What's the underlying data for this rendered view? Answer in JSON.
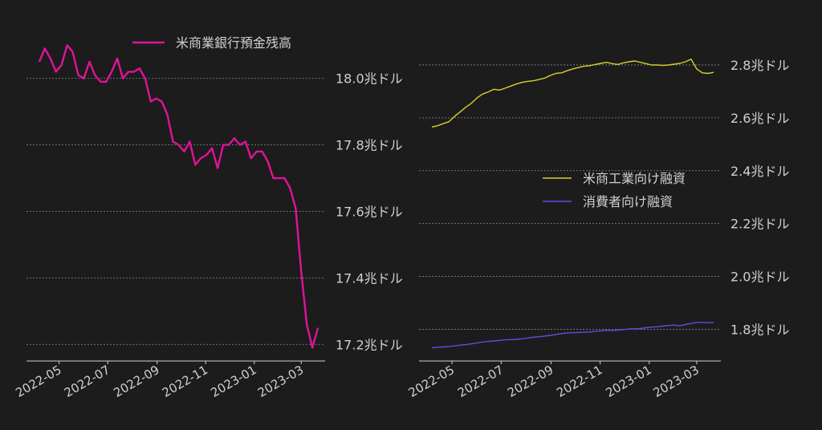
{
  "colors": {
    "background": "#1c1c1c",
    "text": "#d0d0d0",
    "grid": "#8a8a8a",
    "deposits": "#e0139a",
    "ci_loans": "#d9cf2a",
    "consumer_loans": "#5b4fe0"
  },
  "chart_data": [
    {
      "type": "line",
      "title": "",
      "xlabel": "",
      "ylabel": "",
      "ylim": [
        17.15,
        18.12
      ],
      "yticks": [
        18.0,
        17.8,
        17.6,
        17.4,
        17.2
      ],
      "ytick_labels": [
        "18.0兆ドル",
        "17.8兆ドル",
        "17.6兆ドル",
        "17.4兆ドル",
        "17.2兆ドル"
      ],
      "xtick_labels": [
        "2022-05",
        "2022-07",
        "2022-09",
        "2022-11",
        "2023-01",
        "2023-03"
      ],
      "x_range": [
        "2022-03-21",
        "2023-03-31"
      ],
      "grid": "horizontal",
      "legend_placement": "top-center",
      "series": [
        {
          "name": "米商業銀行預金残高",
          "color": "#e0139a",
          "x": [
            "2022-04-06",
            "2022-04-13",
            "2022-04-20",
            "2022-04-27",
            "2022-05-04",
            "2022-05-11",
            "2022-05-18",
            "2022-05-25",
            "2022-06-01",
            "2022-06-08",
            "2022-06-15",
            "2022-06-22",
            "2022-06-29",
            "2022-07-06",
            "2022-07-13",
            "2022-07-20",
            "2022-07-27",
            "2022-08-03",
            "2022-08-10",
            "2022-08-17",
            "2022-08-24",
            "2022-08-31",
            "2022-09-07",
            "2022-09-14",
            "2022-09-21",
            "2022-09-28",
            "2022-10-05",
            "2022-10-12",
            "2022-10-19",
            "2022-10-26",
            "2022-11-02",
            "2022-11-09",
            "2022-11-16",
            "2022-11-23",
            "2022-11-30",
            "2022-12-07",
            "2022-12-14",
            "2022-12-21",
            "2022-12-28",
            "2023-01-04",
            "2023-01-11",
            "2023-01-18",
            "2023-01-25",
            "2023-02-01",
            "2023-02-08",
            "2023-02-15",
            "2023-02-22",
            "2023-03-01",
            "2023-03-08",
            "2023-03-15",
            "2023-03-22"
          ],
          "values": [
            18.05,
            18.09,
            18.06,
            18.02,
            18.04,
            18.1,
            18.08,
            18.01,
            18.0,
            18.05,
            18.01,
            17.99,
            17.99,
            18.02,
            18.06,
            18.0,
            18.02,
            18.02,
            18.03,
            18.0,
            17.93,
            17.94,
            17.93,
            17.89,
            17.81,
            17.8,
            17.78,
            17.81,
            17.74,
            17.76,
            17.77,
            17.79,
            17.73,
            17.8,
            17.8,
            17.82,
            17.8,
            17.81,
            17.76,
            17.78,
            17.78,
            17.75,
            17.7,
            17.7,
            17.7,
            17.67,
            17.61,
            17.42,
            17.26,
            17.19,
            17.25
          ]
        }
      ]
    },
    {
      "type": "line",
      "title": "",
      "xlabel": "",
      "ylabel": "",
      "ylim": [
        1.68,
        2.9
      ],
      "yticks": [
        2.8,
        2.6,
        2.4,
        2.2,
        2.0,
        1.8
      ],
      "ytick_labels": [
        "2.8兆ドル",
        "2.6兆ドル",
        "2.4兆ドル",
        "2.2兆ドル",
        "2.0兆ドル",
        "1.8兆ドル"
      ],
      "xtick_labels": [
        "2022-05",
        "2022-07",
        "2022-09",
        "2022-11",
        "2023-01",
        "2023-03"
      ],
      "x_range": [
        "2022-03-21",
        "2023-03-31"
      ],
      "grid": "horizontal",
      "legend_placement": "center-right",
      "series": [
        {
          "name": "米商工業向け融資",
          "color": "#d9cf2a",
          "x": [
            "2022-04-06",
            "2022-04-13",
            "2022-04-20",
            "2022-04-27",
            "2022-05-04",
            "2022-05-11",
            "2022-05-18",
            "2022-05-25",
            "2022-06-01",
            "2022-06-08",
            "2022-06-15",
            "2022-06-22",
            "2022-06-29",
            "2022-07-06",
            "2022-07-13",
            "2022-07-20",
            "2022-07-27",
            "2022-08-03",
            "2022-08-10",
            "2022-08-17",
            "2022-08-24",
            "2022-08-31",
            "2022-09-07",
            "2022-09-14",
            "2022-09-21",
            "2022-09-28",
            "2022-10-05",
            "2022-10-12",
            "2022-10-19",
            "2022-10-26",
            "2022-11-02",
            "2022-11-09",
            "2022-11-16",
            "2022-11-23",
            "2022-11-30",
            "2022-12-07",
            "2022-12-14",
            "2022-12-21",
            "2022-12-28",
            "2023-01-04",
            "2023-01-11",
            "2023-01-18",
            "2023-01-25",
            "2023-02-01",
            "2023-02-08",
            "2023-02-15",
            "2023-02-22",
            "2023-03-01",
            "2023-03-08",
            "2023-03-15",
            "2023-03-22"
          ],
          "values": [
            2.565,
            2.57,
            2.578,
            2.585,
            2.605,
            2.622,
            2.64,
            2.655,
            2.675,
            2.69,
            2.698,
            2.708,
            2.705,
            2.712,
            2.72,
            2.728,
            2.734,
            2.738,
            2.74,
            2.745,
            2.75,
            2.76,
            2.768,
            2.77,
            2.778,
            2.785,
            2.79,
            2.795,
            2.797,
            2.802,
            2.806,
            2.81,
            2.805,
            2.802,
            2.808,
            2.812,
            2.815,
            2.81,
            2.805,
            2.8,
            2.8,
            2.798,
            2.8,
            2.803,
            2.806,
            2.812,
            2.822,
            2.785,
            2.77,
            2.768,
            2.772
          ]
        },
        {
          "name": "消費者向け融資",
          "color": "#5b4fe0",
          "x": [
            "2022-04-06",
            "2022-04-13",
            "2022-04-20",
            "2022-04-27",
            "2022-05-04",
            "2022-05-11",
            "2022-05-18",
            "2022-05-25",
            "2022-06-01",
            "2022-06-08",
            "2022-06-15",
            "2022-06-22",
            "2022-06-29",
            "2022-07-06",
            "2022-07-13",
            "2022-07-20",
            "2022-07-27",
            "2022-08-03",
            "2022-08-10",
            "2022-08-17",
            "2022-08-24",
            "2022-08-31",
            "2022-09-07",
            "2022-09-14",
            "2022-09-21",
            "2022-09-28",
            "2022-10-05",
            "2022-10-12",
            "2022-10-19",
            "2022-10-26",
            "2022-11-02",
            "2022-11-09",
            "2022-11-16",
            "2022-11-23",
            "2022-11-30",
            "2022-12-07",
            "2022-12-14",
            "2022-12-21",
            "2022-12-28",
            "2023-01-04",
            "2023-01-11",
            "2023-01-18",
            "2023-01-25",
            "2023-02-01",
            "2023-02-08",
            "2023-02-15",
            "2023-02-22",
            "2023-03-01",
            "2023-03-08",
            "2023-03-15",
            "2023-03-22"
          ],
          "values": [
            1.73,
            1.732,
            1.733,
            1.735,
            1.737,
            1.74,
            1.742,
            1.745,
            1.748,
            1.752,
            1.754,
            1.756,
            1.758,
            1.76,
            1.761,
            1.762,
            1.764,
            1.767,
            1.77,
            1.772,
            1.774,
            1.777,
            1.78,
            1.784,
            1.786,
            1.787,
            1.788,
            1.789,
            1.79,
            1.792,
            1.794,
            1.796,
            1.795,
            1.797,
            1.799,
            1.801,
            1.802,
            1.803,
            1.806,
            1.808,
            1.81,
            1.812,
            1.814,
            1.816,
            1.813,
            1.818,
            1.822,
            1.826,
            1.826,
            1.825,
            1.825
          ]
        }
      ]
    }
  ]
}
